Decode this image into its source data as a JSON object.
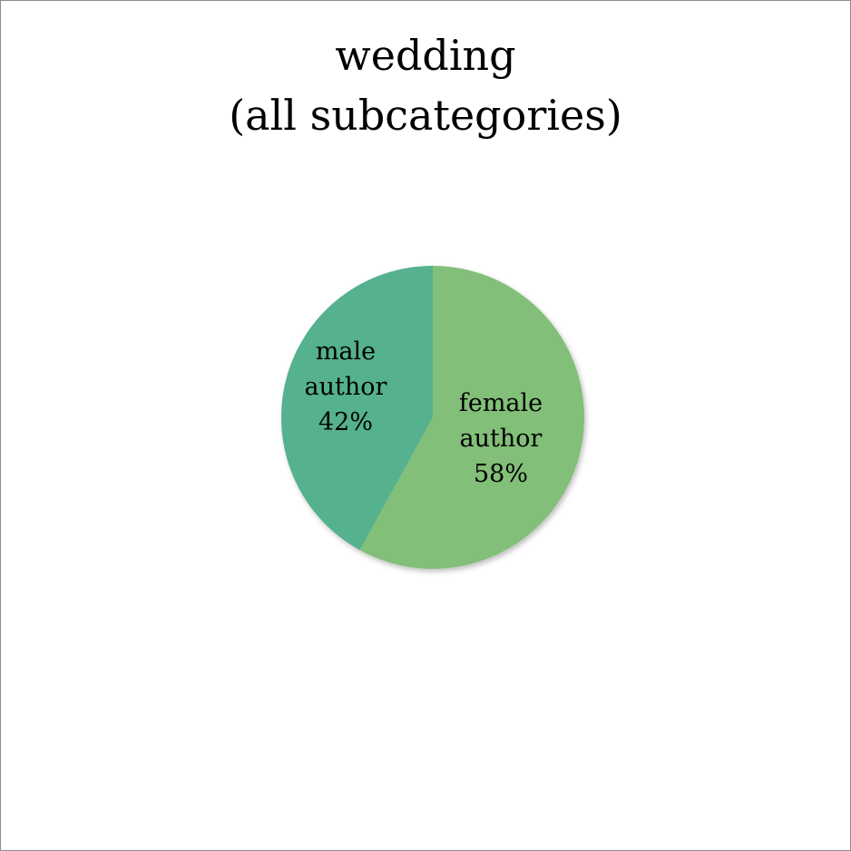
{
  "chart_data": {
    "type": "pie",
    "title": [
      "wedding",
      "(all subcategories)"
    ],
    "slices": [
      {
        "label": "female author",
        "label_lines": [
          "female",
          "author",
          "58%"
        ],
        "value": 58,
        "color": "#82bf78"
      },
      {
        "label": "male author",
        "label_lines": [
          "male",
          "author",
          "42%"
        ],
        "value": 42,
        "color": "#55b18e"
      }
    ],
    "legend": "none",
    "start_angle": "12 o'clock",
    "direction": "clockwise"
  }
}
